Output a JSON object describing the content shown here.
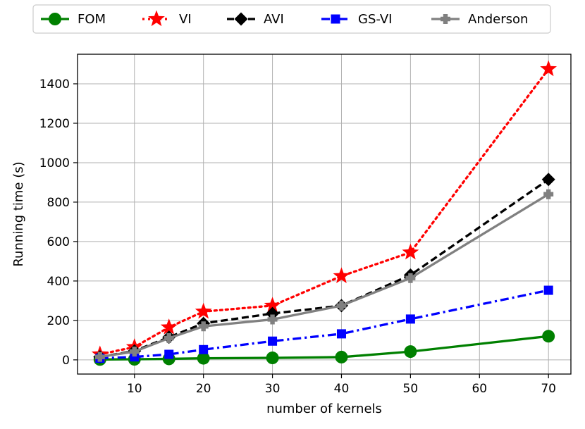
{
  "chart_data": {
    "type": "line",
    "title": "",
    "xlabel": "number of kernels",
    "ylabel": "Running time (s)",
    "x": [
      5,
      10,
      15,
      20,
      30,
      40,
      50,
      70
    ],
    "xlim": [
      1.75,
      73.25
    ],
    "ylim": [
      -72,
      1550
    ],
    "xticks": [
      10,
      20,
      30,
      40,
      50,
      60,
      70
    ],
    "yticks": [
      0,
      200,
      400,
      600,
      800,
      1000,
      1200,
      1400
    ],
    "grid": true,
    "legend_position": "top-center",
    "series": [
      {
        "name": "FOM",
        "color": "#008000",
        "linestyle": "solid",
        "marker": "circle",
        "values": [
          2,
          3,
          5,
          8,
          10,
          14,
          42,
          120
        ]
      },
      {
        "name": "VI",
        "color": "#ff0000",
        "linestyle": "dotted",
        "marker": "star",
        "values": [
          28,
          65,
          165,
          245,
          275,
          425,
          545,
          1475
        ]
      },
      {
        "name": "AVI",
        "color": "#000000",
        "linestyle": "dashed",
        "marker": "diamond",
        "values": [
          15,
          45,
          115,
          185,
          235,
          275,
          430,
          915
        ]
      },
      {
        "name": "GS-VI",
        "color": "#0000ff",
        "linestyle": "dashdot",
        "marker": "square",
        "values": [
          8,
          15,
          28,
          52,
          95,
          132,
          207,
          353
        ]
      },
      {
        "name": "Anderson",
        "color": "#808080",
        "linestyle": "solid",
        "marker": "plus",
        "values": [
          15,
          42,
          110,
          170,
          205,
          275,
          415,
          840
        ]
      }
    ]
  }
}
